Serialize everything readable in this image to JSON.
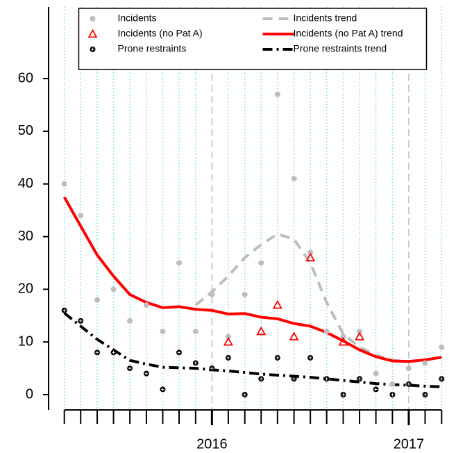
{
  "chart_data": {
    "type": "scatter",
    "x": [
      2015.25,
      2015.333,
      2015.417,
      2015.5,
      2015.583,
      2015.667,
      2015.75,
      2015.833,
      2015.917,
      2016,
      2016.083,
      2016.167,
      2016.25,
      2016.333,
      2016.417,
      2016.5,
      2016.583,
      2016.667,
      2016.75,
      2016.833,
      2016.917,
      2017,
      2017.083,
      2017.167
    ],
    "xlim": [
      2015.17,
      2017.24
    ],
    "ylim": [
      -2.9,
      73.6
    ],
    "xticks": [
      2016,
      2017
    ],
    "minor_xticks": [
      2015.25,
      2015.333,
      2015.417,
      2015.5,
      2015.583,
      2015.667,
      2015.75,
      2015.833,
      2015.917,
      2016.083,
      2016.167,
      2016.25,
      2016.333,
      2016.417,
      2016.5,
      2016.583,
      2016.667,
      2016.75,
      2016.833,
      2016.917,
      2017.083,
      2017.167
    ],
    "yticks": [
      0,
      10,
      20,
      30,
      40,
      50,
      60
    ],
    "grid": true,
    "legend": "top",
    "series": [
      {
        "name": "Incidents",
        "kind": "points",
        "marker": "circle",
        "color": "#bdbdbd",
        "values": [
          40,
          34,
          18,
          20,
          14,
          17,
          12,
          25,
          12,
          19,
          11,
          19,
          25,
          57,
          41,
          27,
          12,
          11,
          12,
          4,
          2,
          5,
          6,
          9
        ]
      },
      {
        "name": "Incidents (no Pat A)",
        "kind": "points",
        "marker": "triangle",
        "color": "#ff0000",
        "values": [
          null,
          null,
          null,
          null,
          null,
          null,
          null,
          null,
          null,
          null,
          10,
          null,
          12,
          17,
          11,
          26,
          null,
          10,
          11,
          null,
          null,
          null,
          null,
          null
        ]
      },
      {
        "name": "Prone restraints",
        "kind": "points",
        "marker": "circle-plus",
        "color": "#000000",
        "values": [
          16,
          14,
          8,
          8,
          5,
          4,
          1,
          8,
          6,
          5,
          7,
          0,
          3,
          7,
          3,
          7,
          3,
          0,
          3,
          1,
          0,
          2,
          0,
          3
        ]
      },
      {
        "name": "Incidents trend",
        "kind": "line",
        "dash": "14 9",
        "width": 4,
        "color": "#bdbdbd",
        "values": [
          null,
          null,
          null,
          null,
          null,
          null,
          null,
          null,
          17,
          19.5,
          22.5,
          26,
          28.5,
          30.5,
          29.5,
          25,
          17.5,
          11.5,
          9,
          7.5,
          6.5,
          6.3,
          6.6,
          7.1
        ]
      },
      {
        "name": "Incidents (no Pat A) trend",
        "kind": "line",
        "dash": "none",
        "width": 4,
        "color": "#ff0000",
        "values": [
          37.5,
          32,
          26.5,
          22.5,
          19,
          17.5,
          16.5,
          16.7,
          16.2,
          16,
          15.3,
          15.4,
          14.7,
          14.4,
          13.5,
          13,
          11.8,
          10.2,
          8.5,
          7.2,
          6.4,
          6.3,
          6.6,
          7.1
        ]
      },
      {
        "name": "Prone restraints trend",
        "kind": "line",
        "dash": "14 6 3 6",
        "width": 4,
        "color": "#000000",
        "values": [
          15.5,
          13,
          10.5,
          8.5,
          6.5,
          5.8,
          5.2,
          5.1,
          5,
          4.7,
          4.5,
          4.2,
          3.9,
          3.7,
          3.5,
          3.3,
          3,
          2.7,
          2.4,
          2.1,
          1.9,
          1.8,
          1.6,
          1.5
        ]
      }
    ]
  }
}
